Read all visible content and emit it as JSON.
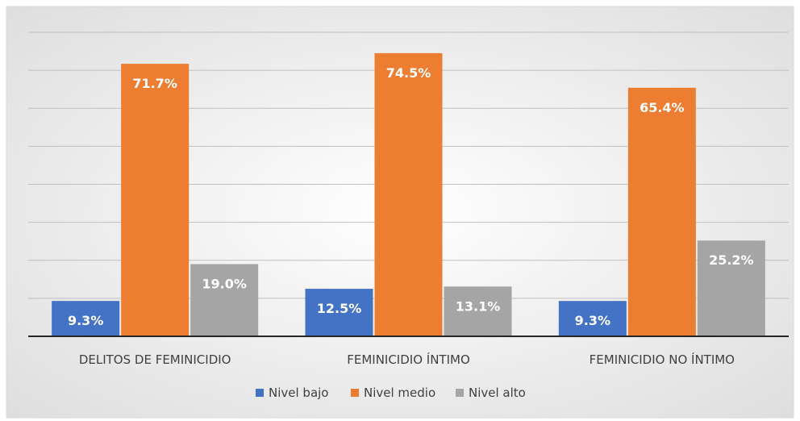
{
  "chart_data": {
    "type": "bar",
    "categories": [
      "DELITOS DE FEMINICIDIO",
      "FEMINICIDIO ÍNTIMO",
      "FEMINICIDIO NO ÍNTIMO"
    ],
    "series": [
      {
        "name": "Nivel bajo",
        "values": [
          9.3,
          12.5,
          9.3
        ],
        "labels": [
          "9.3%",
          "12.5%",
          "9.3%"
        ],
        "color": "#4472C4"
      },
      {
        "name": "Nivel medio",
        "values": [
          71.7,
          74.5,
          65.4
        ],
        "labels": [
          "71.7%",
          "74.5%",
          "65.4%"
        ],
        "color": "#ED7D31"
      },
      {
        "name": "Nivel alto",
        "values": [
          19.0,
          13.1,
          25.2
        ],
        "labels": [
          "19.0%",
          "13.1%",
          "25.2%"
        ],
        "color": "#A5A5A5"
      }
    ],
    "ylim": [
      0,
      80
    ],
    "grid": true,
    "legend_position": "bottom",
    "value_unit": "%"
  }
}
